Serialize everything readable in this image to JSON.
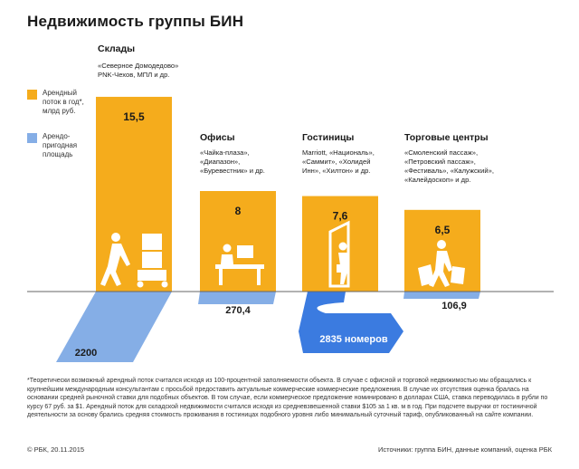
{
  "title": "Недвижимость группы БИН",
  "legend": [
    {
      "label": "Арендный поток в год*, млрд руб.",
      "color": "#f5ac1c"
    },
    {
      "label": "Арендо-пригодная площадь",
      "color": "#85aee6"
    }
  ],
  "colors": {
    "accent": "#f5ac1c",
    "area": "#85aee6",
    "area_dark": "#3b7be0"
  },
  "categories": [
    {
      "title": "Склады",
      "subtitle": "«Северное Домодедово»\nPNK-Чехов, МПЛ и др.",
      "icon": "warehouse-worker-icon"
    },
    {
      "title": "Офисы",
      "subtitle": "«Чайка-плаза»,\n«Диапазон»,\n«Буревестник» и др.",
      "icon": "office-worker-icon"
    },
    {
      "title": "Гостиницы",
      "subtitle": "Marriott, «Националь»,\n«Саммит», «Холидей\nИнн», «Хилтон» и др.",
      "icon": "hotel-guest-icon"
    },
    {
      "title": "Торговые центры",
      "subtitle": "«Смоленский пассаж»,\n«Петровский пассаж»,\n«Фестиваль», «Калужский»,\n«Калейдоскоп» и др.",
      "icon": "shopper-icon"
    }
  ],
  "chart_data": {
    "type": "bar",
    "categories": [
      "Склады",
      "Офисы",
      "Гостиницы",
      "Торговые центры"
    ],
    "series": [
      {
        "name": "Арендный поток в год*, млрд руб.",
        "values": [
          15.5,
          8,
          7.6,
          6.5
        ],
        "labels": [
          "15,5",
          "8",
          "7,6",
          "6,5"
        ]
      },
      {
        "name": "Арендо-пригодная площадь",
        "values": [
          2200,
          270.4,
          2835,
          106.9
        ],
        "labels": [
          "2200",
          "270,4",
          "2835 номеров",
          "106,9"
        ]
      }
    ],
    "ylim": [
      0,
      16
    ]
  },
  "footnote": "*Теоретически возможный арендный поток считался исходя из 100-процентной заполняемости объекта. В случае с офисной и торговой недвижимостью мы обращались к крупнейшим международным консультантам с просьбой предоставить актуальные коммерческие коммерческие предложения. В случае их отсутствия оценка бралась на основании средней рыночной ставки для подобных объектов. В том случае, если коммерческое предложение номинировано в долларах США, ставка переводилась в рубли по курсу 67 руб. за $1. Арендный поток для складской недвижимости считался исходя из средневзвешенной ставки $105 за 1 кв. м в год. При подсчете выручки от гостиничной деятельности за основу брались средняя стоимость проживания в гостиницах подобного уровня либо минимальный суточный тариф, опубликованный на сайте компании.",
  "copyright": "© РБК, 20.11.2015",
  "source": "Источники: группа БИН, данные компаний, оценка РБК"
}
